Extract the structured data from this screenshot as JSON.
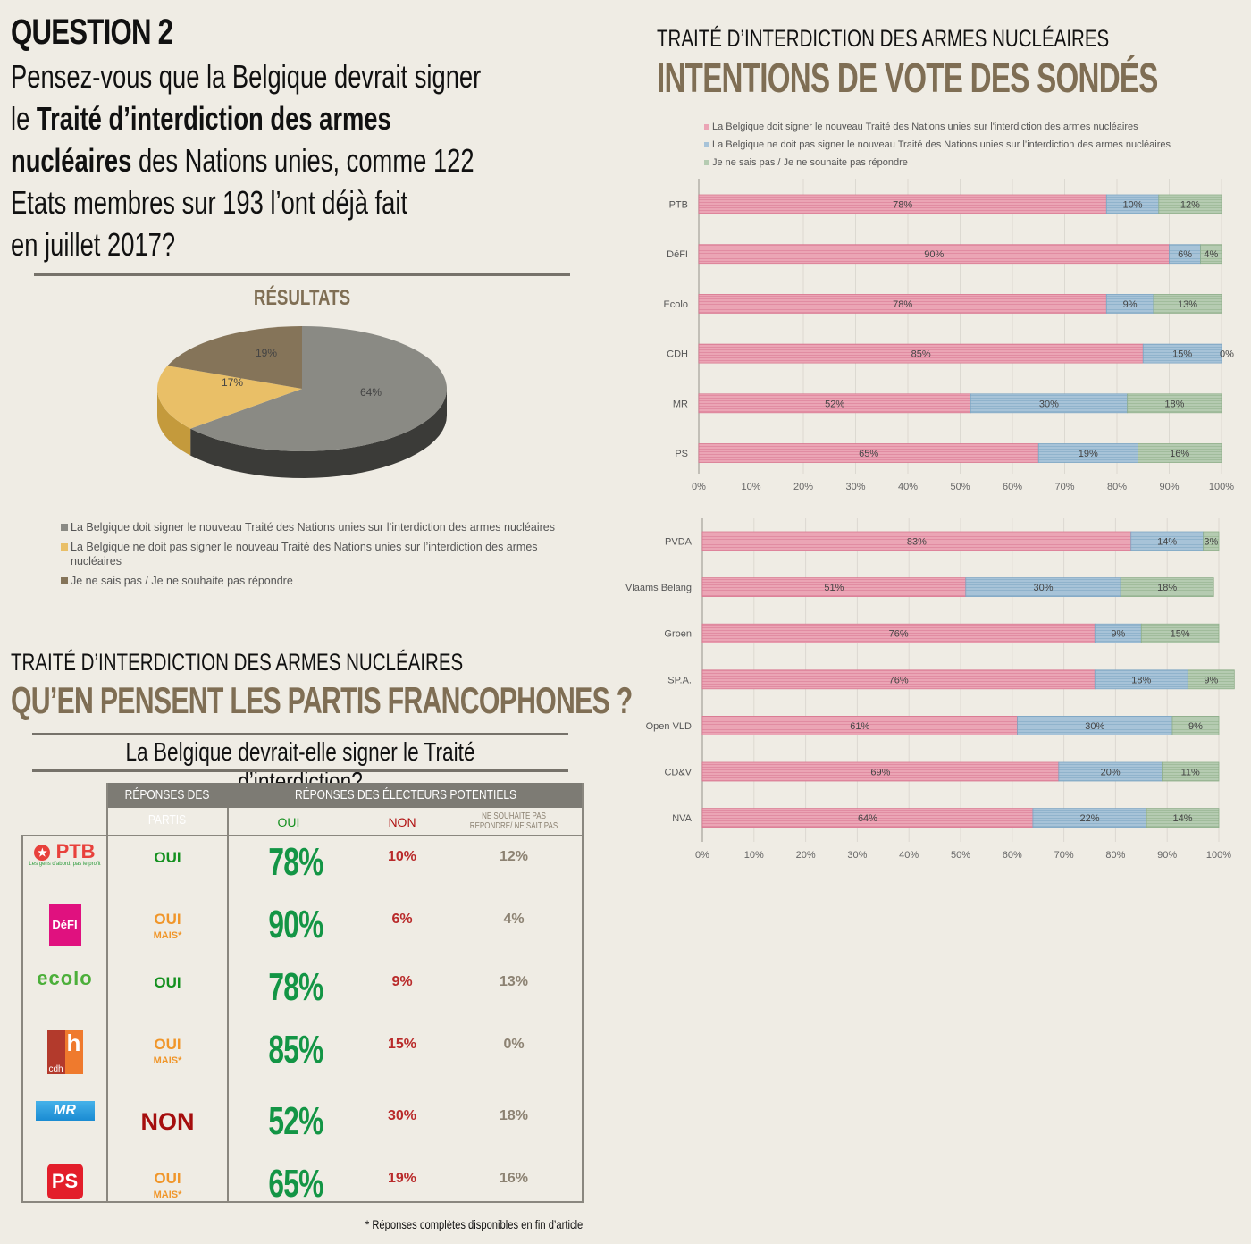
{
  "question": {
    "title": "QUESTION 2",
    "text_1": "Pensez-vous que la Belgique devrait signer",
    "text_2a": "le ",
    "text_2b": "Traité d’interdiction des armes",
    "text_3a": "nucléaires",
    "text_3b": " des Nations unies, comme 122",
    "text_4": "Etats membres sur 193 l’ont déjà fait",
    "text_5": "en juillet 2017?"
  },
  "results": {
    "title": "RÉSULTATS"
  },
  "left_section": {
    "kicker": "TRAITÉ D’INTERDICTION DES ARMES NUCLÉAIRES",
    "title": "QU’EN PENSENT LES PARTIS FRANCOPHONES ?",
    "question": "La Belgique devrait-elle signer le Traité d’interdiction?",
    "table": {
      "header_party": "RÉPONSES DES PARTIS",
      "header_voters": "RÉPONSES DES ÉLECTEURS POTENTIELS",
      "col_oui": "OUI",
      "col_non": "NON",
      "col_ns": "NE SOUHAITE PAS REPONDRE/ NE SAIT PAS",
      "rows": [
        {
          "party": "PTB",
          "logo_text": "PTB",
          "logo_sub": "Les gens d'abord, pas le profit",
          "answer": "OUI",
          "mais": "",
          "oui": "78%",
          "non": "10%",
          "ns": "12%"
        },
        {
          "party": "DéFI",
          "logo_text": "DéFI",
          "answer": "OUI",
          "mais": "MAIS*",
          "oui": "90%",
          "non": "6%",
          "ns": "4%"
        },
        {
          "party": "Ecolo",
          "logo_text": "ecolo",
          "answer": "OUI",
          "mais": "",
          "oui": "78%",
          "non": "9%",
          "ns": "13%"
        },
        {
          "party": "CDH",
          "logo_text": "cdh",
          "answer": "OUI",
          "mais": "MAIS*",
          "oui": "85%",
          "non": "15%",
          "ns": "0%"
        },
        {
          "party": "MR",
          "logo_text": "MR",
          "answer": "NON",
          "mais": "",
          "oui": "52%",
          "non": "30%",
          "ns": "18%"
        },
        {
          "party": "PS",
          "logo_text": "PS",
          "answer": "OUI",
          "mais": "MAIS*",
          "oui": "65%",
          "non": "19%",
          "ns": "16%"
        }
      ]
    },
    "footnote": "* Réponses complètes disponibles en fin d’article"
  },
  "right_section": {
    "kicker": "TRAITÉ D’INTERDICTION DES ARMES NUCLÉAIRES",
    "title": "INTENTIONS DE VOTE DES SONDÉS"
  },
  "colors": {
    "yes": "#eba5b5",
    "no": "#a7c3d8",
    "ns": "#b5cbb1",
    "pie_yes": "#8a8a84",
    "pie_no": "#e9bf67",
    "pie_ns": "#857459",
    "accent": "#7f6e54"
  },
  "chart_data": [
    {
      "type": "pie",
      "title": "RÉSULTATS",
      "labels": [
        "La Belgique doit signer le nouveau Traité des Nations unies sur l’interdiction des armes nucléaires",
        "La Belgique ne doit pas signer le nouveau Traité des Nations unies sur l’interdiction des armes nucléaires",
        "Je ne sais pas / Je ne souhaite pas répondre"
      ],
      "values": [
        64,
        17,
        19
      ],
      "data_labels": [
        "64%",
        "17%",
        "19%"
      ],
      "legend": "bottom"
    },
    {
      "type": "bar",
      "stacked": true,
      "orientation": "horizontal",
      "categories": [
        "PTB",
        "DéFI",
        "Ecolo",
        "CDH",
        "MR",
        "PS"
      ],
      "series": [
        {
          "name": "La Belgique doit signer le nouveau Traité des Nations unies sur l'interdiction des armes nucléaires",
          "values": [
            78,
            90,
            78,
            85,
            52,
            65
          ]
        },
        {
          "name": "La Belgique ne doit pas signer le nouveau Traité des Nations unies sur l’interdiction des armes nucléaires",
          "values": [
            10,
            6,
            9,
            15,
            30,
            19
          ]
        },
        {
          "name": "Je ne sais pas / Je ne souhaite pas répondre",
          "values": [
            12,
            4,
            13,
            0,
            18,
            16
          ]
        }
      ],
      "xlim": [
        0,
        100
      ],
      "xticks": [
        "0%",
        "10%",
        "20%",
        "30%",
        "40%",
        "50%",
        "60%",
        "70%",
        "80%",
        "90%",
        "100%"
      ],
      "grid": true,
      "legend": "top"
    },
    {
      "type": "bar",
      "stacked": true,
      "orientation": "horizontal",
      "categories": [
        "PVDA",
        "Vlaams Belang",
        "Groen",
        "SP.A.",
        "Open VLD",
        "CD&V",
        "NVA"
      ],
      "series": [
        {
          "name": "La Belgique doit signer",
          "values": [
            83,
            51,
            76,
            76,
            61,
            69,
            64
          ]
        },
        {
          "name": "La Belgique ne doit pas signer",
          "values": [
            14,
            30,
            9,
            18,
            30,
            20,
            22
          ]
        },
        {
          "name": "Je ne sais pas / Je ne souhaite pas répondre",
          "values": [
            3,
            18,
            15,
            9,
            9,
            11,
            14
          ]
        }
      ],
      "xlim": [
        0,
        100
      ],
      "xticks": [
        "0%",
        "10%",
        "20%",
        "30%",
        "40%",
        "50%",
        "60%",
        "70%",
        "80%",
        "90%",
        "100%"
      ],
      "grid": true
    }
  ]
}
